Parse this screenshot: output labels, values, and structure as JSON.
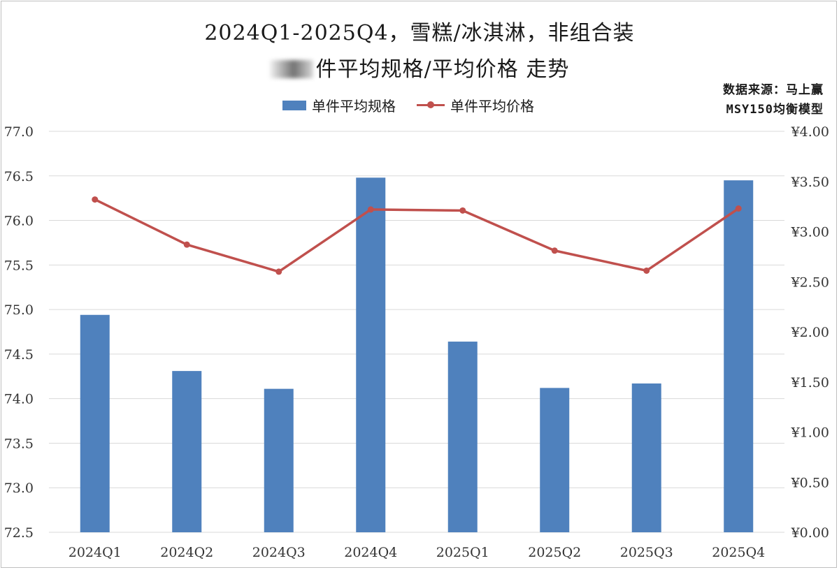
{
  "title": {
    "line1": "2024Q1-2025Q4，雪糕/冰淇淋，非组合装",
    "line2": "件平均规格/平均价格 走势"
  },
  "source": {
    "line1": "数据来源：马上赢",
    "line2": "MSY150均衡模型"
  },
  "colors": {
    "bar": "#4f81bd",
    "line": "#c0504d",
    "grid": "#d9d9d9"
  },
  "chart_data": {
    "type": "bar",
    "categories": [
      "2024Q1",
      "2024Q2",
      "2024Q3",
      "2024Q4",
      "2025Q1",
      "2025Q2",
      "2025Q3",
      "2025Q4"
    ],
    "series": [
      {
        "name": "单件平均规格",
        "type": "bar",
        "axis": "left",
        "values": [
          74.94,
          74.31,
          74.11,
          76.48,
          74.64,
          74.12,
          74.17,
          76.45
        ]
      },
      {
        "name": "单件平均价格",
        "type": "line",
        "axis": "right",
        "values": [
          3.32,
          2.87,
          2.6,
          3.22,
          3.21,
          2.81,
          2.61,
          3.23
        ]
      }
    ],
    "y_left": {
      "ylim": [
        72.5,
        77.0
      ],
      "ticks": [
        "72.5",
        "73.0",
        "73.5",
        "74.0",
        "74.5",
        "75.0",
        "75.5",
        "76.0",
        "76.5",
        "77.0"
      ]
    },
    "y_right": {
      "ylim": [
        0,
        4
      ],
      "ticks": [
        "¥0.00",
        "¥0.50",
        "¥1.00",
        "¥1.50",
        "¥2.00",
        "¥2.50",
        "¥3.00",
        "¥3.50",
        "¥4.00"
      ]
    },
    "grid": true,
    "legend": "top-center"
  }
}
